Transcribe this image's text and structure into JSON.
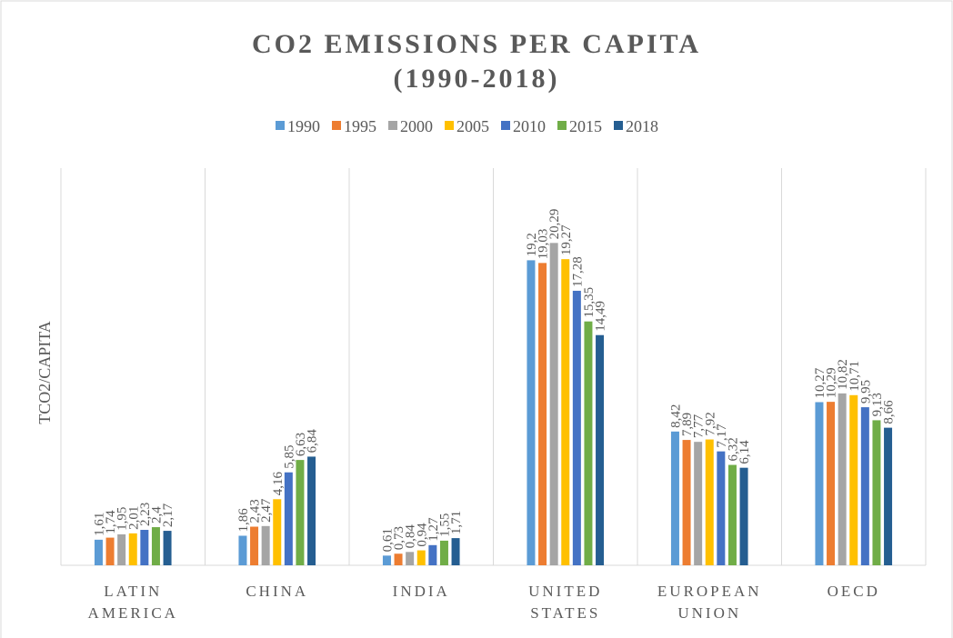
{
  "chart_data": {
    "type": "bar",
    "title": "CO2 EMISSIONS PER CAPITA",
    "subtitle": "(1990-2018)",
    "y_label": "TCO2/CAPITA",
    "categories": [
      "LATIN AMERICA",
      "CHINA",
      "INDIA",
      "UNITED STATES",
      "EUROPEAN UNION",
      "OECD"
    ],
    "series": [
      {
        "name": "1990",
        "color": "#5b9bd5",
        "values": [
          1.61,
          1.86,
          0.61,
          19.2,
          8.42,
          10.27
        ],
        "value_labels": [
          "1,61",
          "1,86",
          "0,61",
          "19,2",
          "8,42",
          "10,27"
        ]
      },
      {
        "name": "1995",
        "color": "#ed7d31",
        "values": [
          1.74,
          2.43,
          0.73,
          19.03,
          7.89,
          10.29
        ],
        "value_labels": [
          "1,74",
          "2,43",
          "0,73",
          "19,03",
          "7,89",
          "10,29"
        ]
      },
      {
        "name": "2000",
        "color": "#a5a5a5",
        "values": [
          1.95,
          2.47,
          0.84,
          20.29,
          7.77,
          10.82
        ],
        "value_labels": [
          "1,95",
          "2,47",
          "0,84",
          "20,29",
          "7,77",
          "10,82"
        ]
      },
      {
        "name": "2005",
        "color": "#ffc000",
        "values": [
          2.01,
          4.16,
          0.94,
          19.27,
          7.92,
          10.71
        ],
        "value_labels": [
          "2,01",
          "4,16",
          "0,94",
          "19,27",
          "7,92",
          "10,71"
        ]
      },
      {
        "name": "2010",
        "color": "#4472c4",
        "values": [
          2.23,
          5.85,
          1.27,
          17.28,
          7.17,
          9.95
        ],
        "value_labels": [
          "2,23",
          "5,85",
          "1,27",
          "17,28",
          "7,17",
          "9,95"
        ]
      },
      {
        "name": "2015",
        "color": "#70ad47",
        "values": [
          2.4,
          6.63,
          1.55,
          15.35,
          6.32,
          9.13
        ],
        "value_labels": [
          "2,4",
          "6,63",
          "1,55",
          "15,35",
          "6,32",
          "9,13"
        ]
      },
      {
        "name": "2018",
        "color": "#255e91",
        "values": [
          2.17,
          6.84,
          1.71,
          14.49,
          6.14,
          8.66
        ],
        "value_labels": [
          "2,17",
          "6,84",
          "1,71",
          "14,49",
          "6,14",
          "8,66"
        ]
      }
    ],
    "ylim": [
      0,
      25
    ],
    "category_separators": true
  }
}
